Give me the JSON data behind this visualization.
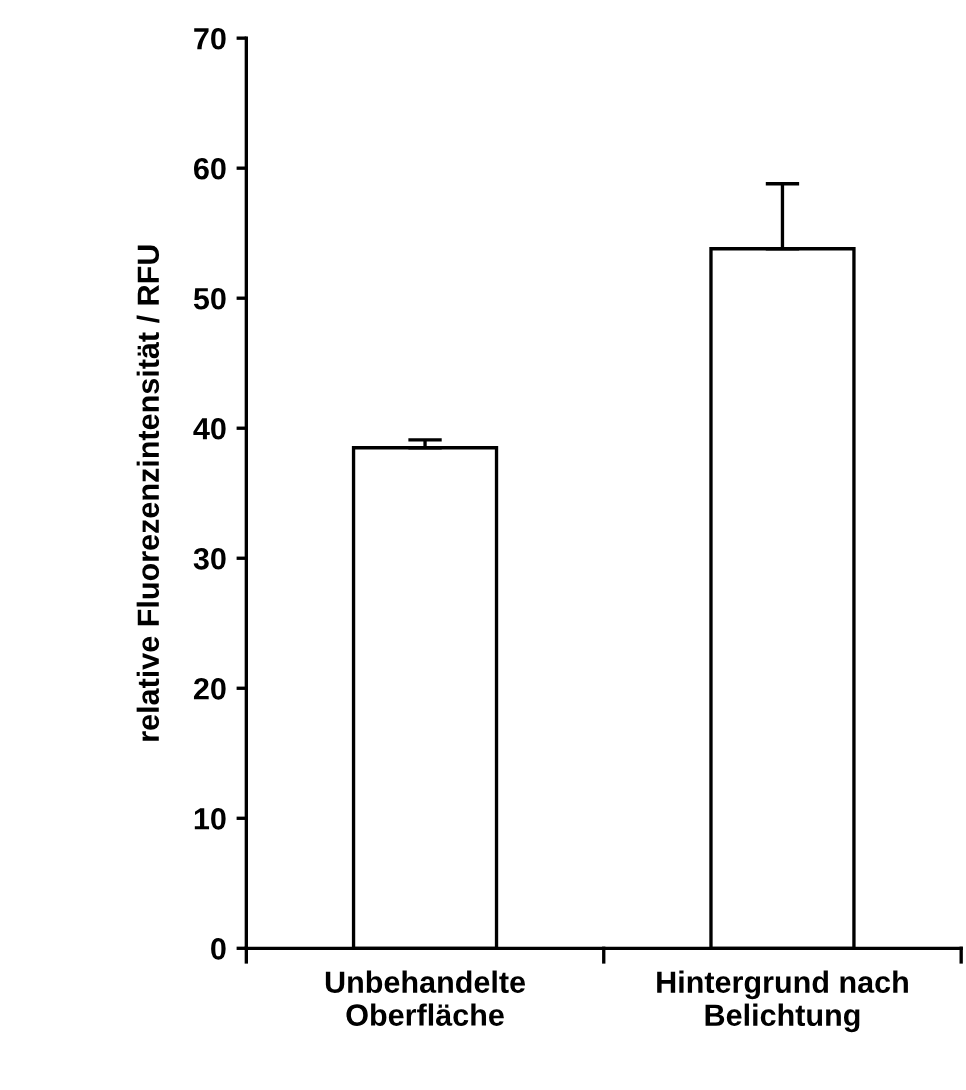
{
  "chart_data": {
    "type": "bar",
    "ylabel": "relative Fluorezenzintensität / RFU",
    "categories": [
      "Unbehandelte\nOberfläche",
      "Hintergrund nach\nBelichtung"
    ],
    "values": [
      38.5,
      53.8
    ],
    "errors": [
      [
        38.5,
        39.1
      ],
      [
        53.8,
        58.8
      ]
    ],
    "color": "#ffffff",
    "ylim": [
      0,
      70
    ],
    "yticks": [
      0,
      10,
      20,
      30,
      40,
      50,
      60,
      70
    ],
    "grid": false
  }
}
